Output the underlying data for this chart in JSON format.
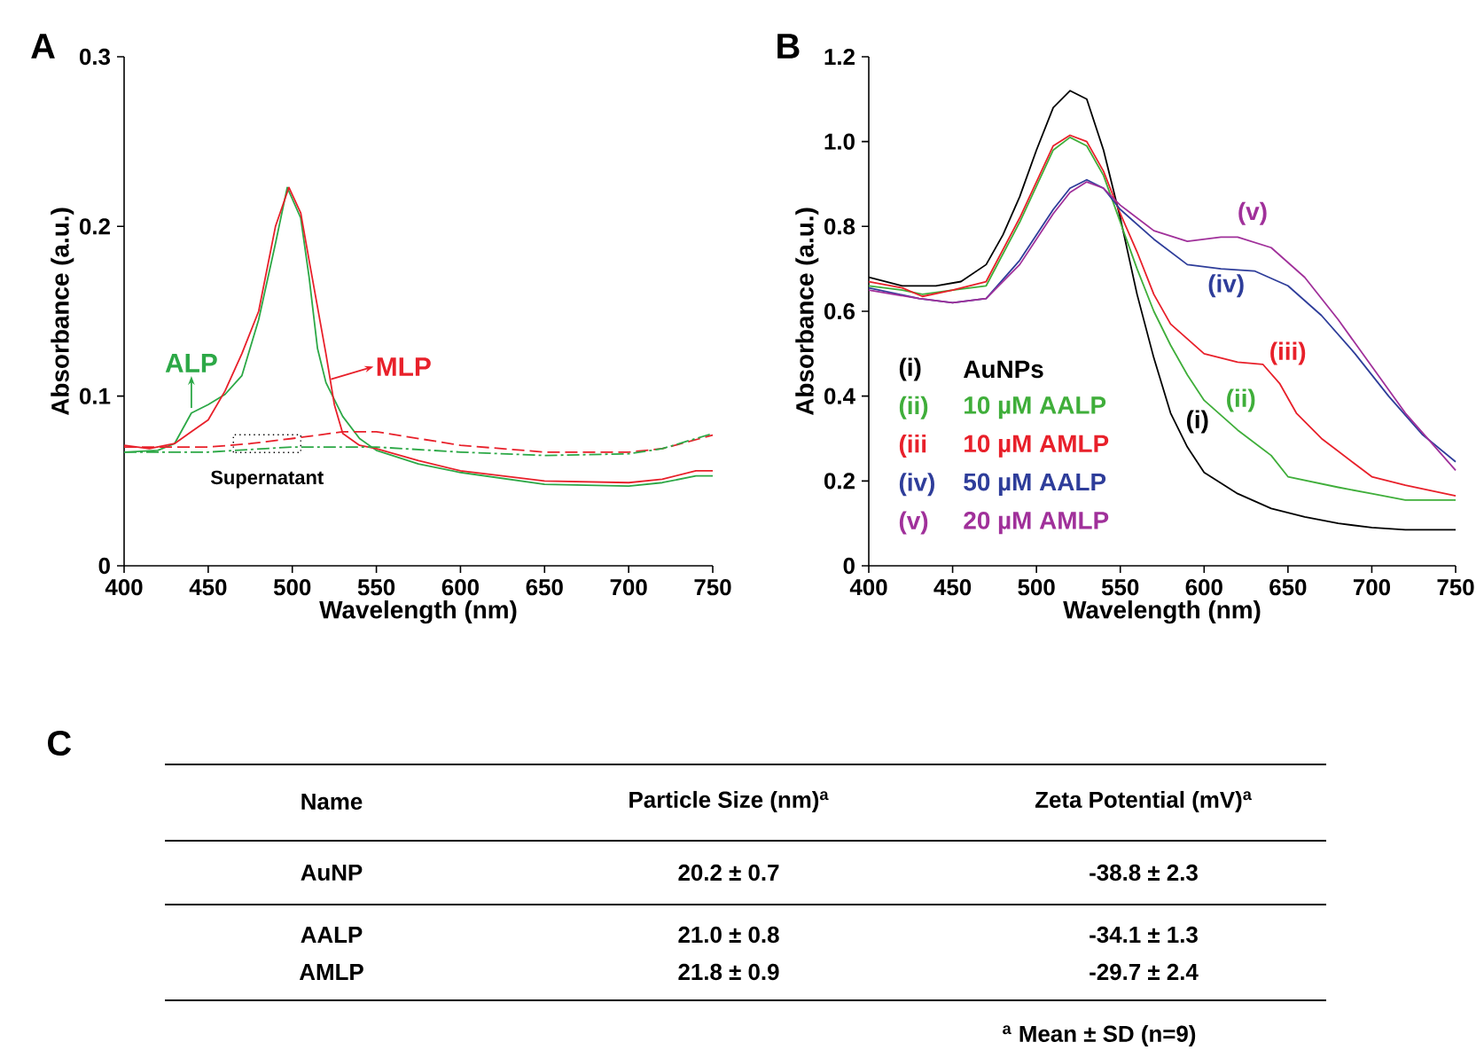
{
  "chart_data": [
    {
      "type": "line",
      "title": "A",
      "xlabel": "Wavelength (nm)",
      "ylabel": "Absorbance (a.u.)",
      "xlim": [
        400,
        750
      ],
      "ylim": [
        0,
        0.3
      ],
      "xticks": [
        400,
        450,
        500,
        550,
        600,
        650,
        700,
        750
      ],
      "yticks": [
        0,
        0.1,
        0.2,
        0.3
      ],
      "series": [
        {
          "color": "#2ca846",
          "x": [
            400,
            420,
            430,
            440,
            450,
            460,
            470,
            480,
            490,
            497,
            505,
            510,
            515,
            520,
            530,
            540,
            550,
            575,
            600,
            650,
            700,
            720,
            740,
            750
          ],
          "values": [
            0.067,
            0.068,
            0.072,
            0.09,
            0.095,
            0.101,
            0.112,
            0.145,
            0.19,
            0.223,
            0.205,
            0.17,
            0.128,
            0.108,
            0.088,
            0.075,
            0.068,
            0.06,
            0.055,
            0.048,
            0.047,
            0.049,
            0.053,
            0.053
          ]
        },
        {
          "color": "#e8202a",
          "x": [
            400,
            415,
            430,
            440,
            450,
            460,
            470,
            480,
            490,
            498,
            505,
            510,
            520,
            525,
            530,
            540,
            550,
            575,
            600,
            650,
            700,
            720,
            740,
            750
          ],
          "values": [
            0.071,
            0.069,
            0.072,
            0.079,
            0.086,
            0.103,
            0.125,
            0.15,
            0.2,
            0.223,
            0.208,
            0.18,
            0.125,
            0.095,
            0.078,
            0.071,
            0.069,
            0.062,
            0.056,
            0.05,
            0.049,
            0.051,
            0.056,
            0.056
          ]
        },
        {
          "color": "#e8202a",
          "line_style": "dashed",
          "x": [
            400,
            450,
            475,
            500,
            530,
            550,
            575,
            600,
            650,
            700,
            720,
            750
          ],
          "values": [
            0.07,
            0.07,
            0.072,
            0.075,
            0.079,
            0.079,
            0.075,
            0.071,
            0.067,
            0.067,
            0.069,
            0.077
          ]
        },
        {
          "color": "#2ca846",
          "line_style": "dashdot",
          "x": [
            400,
            450,
            500,
            550,
            600,
            650,
            700,
            720,
            750
          ],
          "values": [
            0.067,
            0.067,
            0.07,
            0.07,
            0.067,
            0.065,
            0.066,
            0.069,
            0.078
          ]
        }
      ],
      "annotations": [
        {
          "text": "ALP",
          "x": 440,
          "y": 0.093
        },
        {
          "text": "MLP",
          "x": 523,
          "y": 0.11
        },
        {
          "text": "Supernatant",
          "x": 485,
          "y": 0.072
        }
      ]
    },
    {
      "type": "line",
      "title": "B",
      "xlabel": "Wavelength (nm)",
      "ylabel": "Absorbance (a.u.)",
      "xlim": [
        400,
        750
      ],
      "ylim": [
        0,
        1.2
      ],
      "xticks": [
        400,
        450,
        500,
        550,
        600,
        650,
        700,
        750
      ],
      "yticks": [
        0,
        0.2,
        0.4,
        0.6,
        0.8,
        {
          "value": 1.0,
          "label": "1.0"
        },
        1.2
      ],
      "legend": "bottom left",
      "series": [
        {
          "name": "AuNPs",
          "color": "#000000",
          "x": [
            400,
            420,
            440,
            455,
            470,
            480,
            490,
            500,
            510,
            520,
            530,
            540,
            550,
            560,
            570,
            580,
            590,
            600,
            620,
            640,
            660,
            680,
            700,
            720,
            750
          ],
          "values": [
            0.68,
            0.66,
            0.66,
            0.67,
            0.71,
            0.78,
            0.87,
            0.98,
            1.08,
            1.12,
            1.1,
            0.98,
            0.82,
            0.64,
            0.49,
            0.36,
            0.28,
            0.22,
            0.17,
            0.135,
            0.115,
            0.1,
            0.09,
            0.085,
            0.085
          ]
        },
        {
          "name": "10 µM AALP",
          "color": "#3fae3a",
          "x": [
            400,
            420,
            432,
            450,
            470,
            490,
            510,
            520,
            530,
            540,
            550,
            560,
            570,
            580,
            590,
            600,
            620,
            640,
            650,
            680,
            700,
            720,
            750
          ],
          "values": [
            0.66,
            0.65,
            0.64,
            0.65,
            0.66,
            0.81,
            0.98,
            1.01,
            0.99,
            0.92,
            0.81,
            0.7,
            0.6,
            0.52,
            0.45,
            0.39,
            0.32,
            0.26,
            0.21,
            0.185,
            0.17,
            0.155,
            0.155
          ]
        },
        {
          "name": "10 µM AMLP",
          "color": "#e8202a",
          "x": [
            400,
            420,
            432,
            450,
            470,
            490,
            510,
            520,
            530,
            540,
            550,
            560,
            570,
            580,
            600,
            620,
            635,
            645,
            655,
            670,
            690,
            700,
            720,
            750
          ],
          "values": [
            0.67,
            0.655,
            0.635,
            0.65,
            0.67,
            0.82,
            0.99,
            1.015,
            1.0,
            0.93,
            0.83,
            0.74,
            0.64,
            0.57,
            0.5,
            0.48,
            0.475,
            0.43,
            0.36,
            0.3,
            0.24,
            0.21,
            0.19,
            0.165
          ]
        },
        {
          "name": "50 µM AALP",
          "color": "#2e3d9a",
          "x": [
            400,
            430,
            450,
            470,
            490,
            510,
            520,
            530,
            540,
            550,
            570,
            590,
            610,
            630,
            650,
            670,
            690,
            710,
            730,
            750
          ],
          "values": [
            0.655,
            0.63,
            0.62,
            0.63,
            0.72,
            0.84,
            0.89,
            0.91,
            0.89,
            0.84,
            0.77,
            0.71,
            0.7,
            0.695,
            0.66,
            0.59,
            0.5,
            0.4,
            0.31,
            0.245
          ]
        },
        {
          "name": "20 µM AMLP",
          "color": "#a0309a",
          "x": [
            400,
            430,
            450,
            470,
            490,
            510,
            520,
            530,
            540,
            550,
            570,
            590,
            610,
            620,
            640,
            660,
            680,
            700,
            720,
            740,
            750
          ],
          "values": [
            0.65,
            0.63,
            0.62,
            0.63,
            0.71,
            0.83,
            0.88,
            0.905,
            0.89,
            0.85,
            0.79,
            0.765,
            0.775,
            0.775,
            0.75,
            0.68,
            0.58,
            0.47,
            0.36,
            0.27,
            0.225
          ]
        }
      ],
      "annotations": [
        "(i)",
        "(ii)",
        "(iii",
        "(iv)",
        "(v)",
        "(i)",
        "(ii)",
        "(iii)",
        "(iv)",
        "(v)"
      ]
    },
    {
      "type": "other",
      "title": "C",
      "annotations": [
        "Name",
        "Particle Size (nm)$^{a}$",
        "Zeta Potential (mV)$^{a}$",
        "AuNP",
        "20.2 ±  0.7",
        "-38.8 ±  2.3",
        "AALP",
        "21.0 ±  0.8",
        "-34.1 ±  1.3",
        "AMLP",
        "21.8 ±  0.9",
        "-29.7 ±  2.4",
        "$^{a}$ Mean ±  SD (n=9)"
      ]
    }
  ]
}
